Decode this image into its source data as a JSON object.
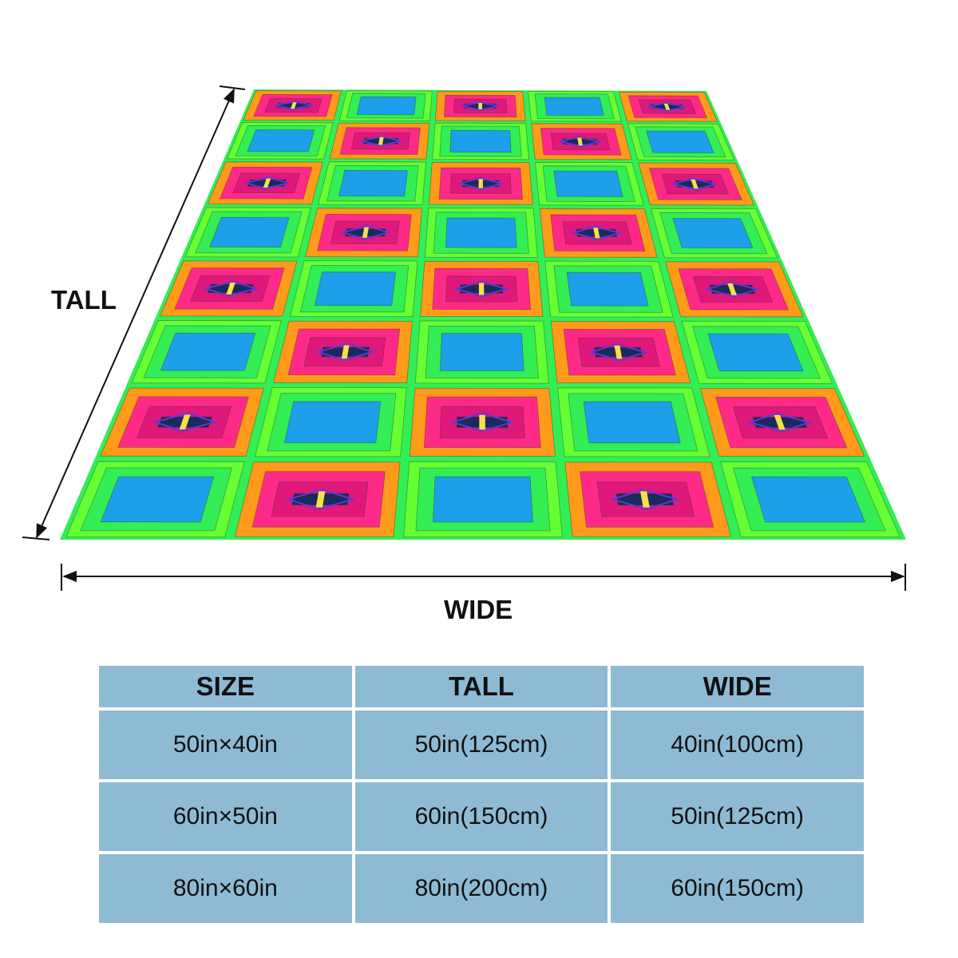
{
  "dimensions": {
    "tall_label": "TALL",
    "wide_label": "WIDE"
  },
  "blanket": {
    "pattern_colors": {
      "green": "#33ee55",
      "lime": "#66ff33",
      "orange": "#ff9a1a",
      "pink": "#ff2a88",
      "magenta": "#e0187a",
      "blue": "#1e9fea",
      "navy": "#1a2a5a",
      "violet": "#5a3ad8"
    }
  },
  "size_table": {
    "headers": [
      "SIZE",
      "TALL",
      "WIDE"
    ],
    "rows": [
      [
        "50in×40in",
        "50in(125cm)",
        "40in(100cm)"
      ],
      [
        "60in×50in",
        "60in(150cm)",
        "50in(125cm)"
      ],
      [
        "80in×60in",
        "80in(200cm)",
        "60in(150cm)"
      ]
    ],
    "cell_color": "#8fbad3"
  }
}
